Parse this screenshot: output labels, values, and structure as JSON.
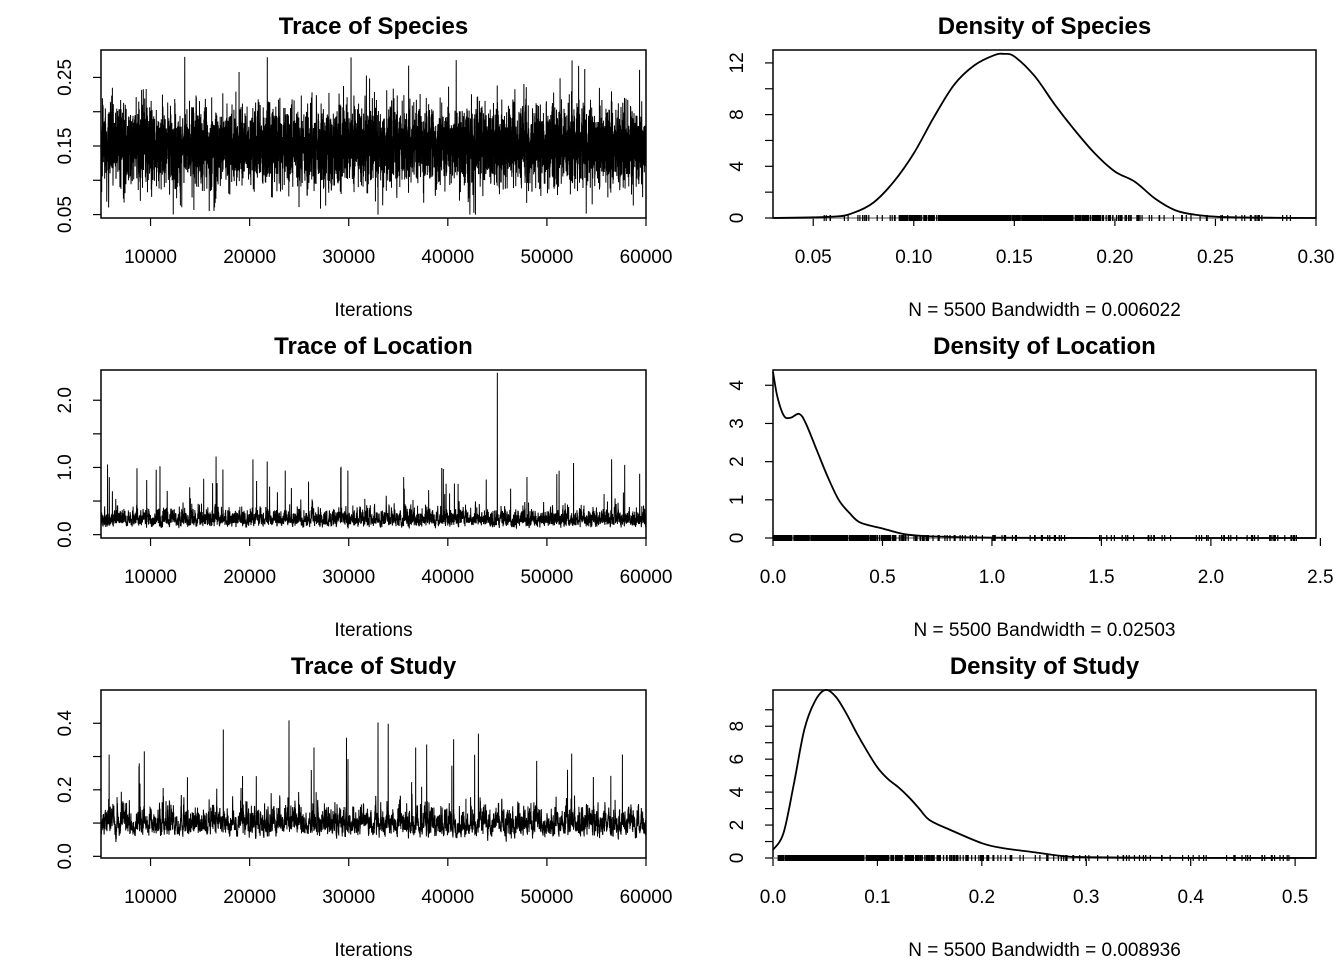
{
  "chart_data": [
    {
      "type": "line",
      "title": "Trace of Species",
      "xlabel": "Iterations",
      "ylabel": "",
      "xlim": [
        5000,
        60000
      ],
      "ylim": [
        0.045,
        0.29
      ],
      "xticks": [
        "10000",
        "20000",
        "30000",
        "40000",
        "50000",
        "60000"
      ],
      "yticks": [
        "0.05",
        "0.15",
        "0.25"
      ],
      "series": [
        {
          "x_start": 5000,
          "x_end": 60000,
          "n": 5500,
          "mean": 0.15,
          "sd": 0.03,
          "min": 0.05,
          "max": 0.28
        }
      ]
    },
    {
      "type": "line",
      "title": "Density of Species",
      "xlabel": "N = 5500   Bandwidth = 0.006022",
      "ylabel": "",
      "xlim": [
        0.03,
        0.3
      ],
      "ylim": [
        0,
        13
      ],
      "xticks": [
        "0.05",
        "0.10",
        "0.15",
        "0.20",
        "0.25",
        "0.30"
      ],
      "yticks": [
        "0",
        "4",
        "8",
        "12"
      ],
      "series": [
        {
          "x": [
            0.03,
            0.06,
            0.07,
            0.08,
            0.09,
            0.1,
            0.11,
            0.12,
            0.13,
            0.14,
            0.145,
            0.15,
            0.16,
            0.17,
            0.18,
            0.19,
            0.2,
            0.21,
            0.22,
            0.23,
            0.24,
            0.25,
            0.26,
            0.28,
            0.3
          ],
          "y": [
            0.0,
            0.1,
            0.4,
            1.2,
            2.8,
            5.0,
            7.8,
            10.3,
            11.8,
            12.6,
            12.7,
            12.5,
            11.0,
            8.8,
            6.8,
            5.0,
            3.6,
            2.8,
            1.5,
            0.6,
            0.25,
            0.1,
            0.05,
            0.02,
            0.0
          ]
        }
      ]
    },
    {
      "type": "line",
      "title": "Trace of Location",
      "xlabel": "Iterations",
      "ylabel": "",
      "xlim": [
        5000,
        60000
      ],
      "ylim": [
        -0.05,
        2.45
      ],
      "xticks": [
        "10000",
        "20000",
        "30000",
        "40000",
        "50000",
        "60000"
      ],
      "yticks": [
        "0.0",
        "1.0",
        "2.0"
      ],
      "series": [
        {
          "x_start": 5000,
          "x_end": 60000,
          "n": 5500,
          "mean": 0.18,
          "min": 0.0,
          "max": 2.41,
          "spike_x": 45000,
          "spike_y": 2.41
        }
      ]
    },
    {
      "type": "line",
      "title": "Density of Location",
      "xlabel": "N = 5500   Bandwidth = 0.02503",
      "ylabel": "",
      "xlim": [
        0.0,
        2.48
      ],
      "ylim": [
        0,
        4.4
      ],
      "xticks": [
        "0.0",
        "0.5",
        "1.0",
        "1.5",
        "2.0",
        "2.5"
      ],
      "yticks": [
        "0",
        "1",
        "2",
        "3",
        "4"
      ],
      "series": [
        {
          "x": [
            0.0,
            0.02,
            0.05,
            0.08,
            0.12,
            0.15,
            0.2,
            0.25,
            0.3,
            0.35,
            0.4,
            0.5,
            0.6,
            0.7,
            0.8,
            1.0,
            1.5,
            2.0,
            2.48
          ],
          "y": [
            4.35,
            3.7,
            3.2,
            3.15,
            3.25,
            3.0,
            2.3,
            1.6,
            1.0,
            0.65,
            0.4,
            0.25,
            0.1,
            0.05,
            0.03,
            0.01,
            0.0,
            0.0,
            0.0
          ]
        }
      ]
    },
    {
      "type": "line",
      "title": "Trace of Study",
      "xlabel": "Iterations",
      "ylabel": "",
      "xlim": [
        5000,
        60000
      ],
      "ylim": [
        -0.005,
        0.5
      ],
      "xticks": [
        "10000",
        "20000",
        "30000",
        "40000",
        "50000",
        "60000"
      ],
      "yticks": [
        "0.0",
        "0.2",
        "0.4"
      ],
      "series": [
        {
          "x_start": 5000,
          "x_end": 60000,
          "n": 5500,
          "mean": 0.09,
          "min": 0.005,
          "max": 0.5
        }
      ]
    },
    {
      "type": "line",
      "title": "Density of Study",
      "xlabel": "N = 5500   Bandwidth = 0.008936",
      "ylabel": "",
      "xlim": [
        0.0,
        0.52
      ],
      "ylim": [
        0,
        10.2
      ],
      "xticks": [
        "0.0",
        "0.1",
        "0.2",
        "0.3",
        "0.4",
        "0.5"
      ],
      "yticks": [
        "0",
        "2",
        "4",
        "6",
        "8"
      ],
      "series": [
        {
          "x": [
            0.0,
            0.01,
            0.02,
            0.03,
            0.04,
            0.05,
            0.06,
            0.07,
            0.08,
            0.09,
            0.1,
            0.11,
            0.12,
            0.13,
            0.14,
            0.15,
            0.17,
            0.2,
            0.22,
            0.25,
            0.28,
            0.3,
            0.35,
            0.4,
            0.52
          ],
          "y": [
            0.5,
            1.5,
            4.5,
            7.8,
            9.5,
            10.2,
            9.8,
            8.8,
            7.6,
            6.5,
            5.5,
            4.8,
            4.3,
            3.7,
            3.0,
            2.3,
            1.7,
            0.9,
            0.6,
            0.35,
            0.1,
            0.05,
            0.02,
            0.01,
            0.0
          ]
        }
      ]
    }
  ]
}
